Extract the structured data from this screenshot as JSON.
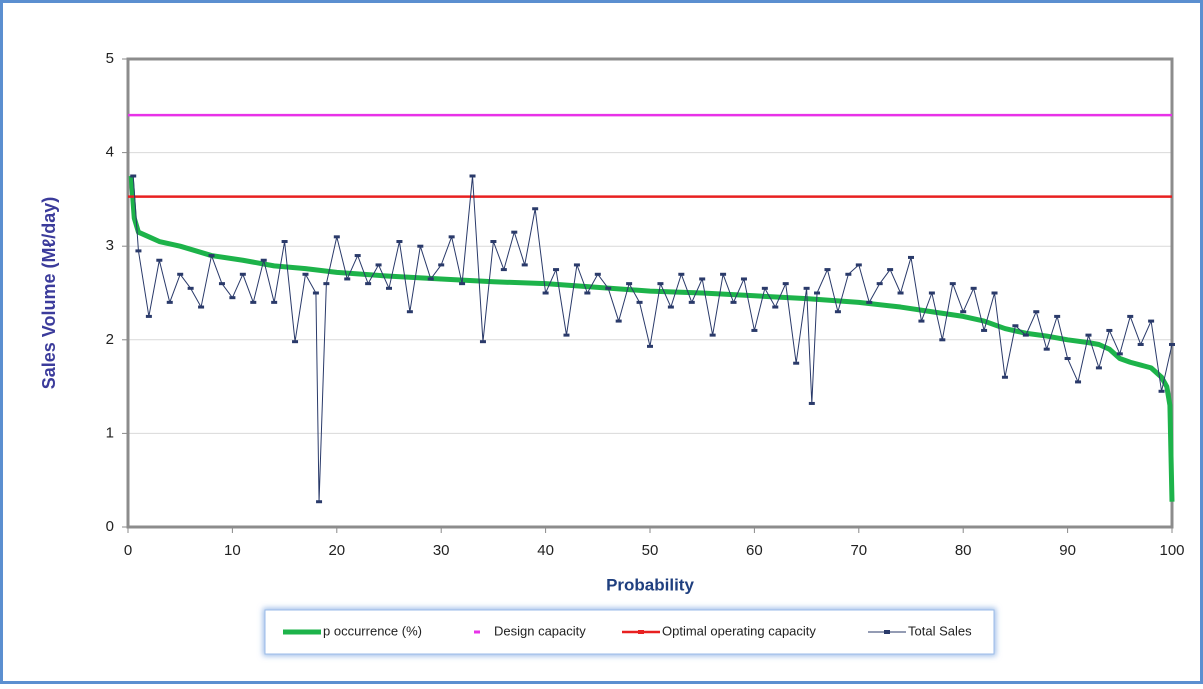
{
  "chart_data": {
    "type": "line",
    "xlabel": "Probability",
    "ylabel": "Sales Volume (Mℓ/day)",
    "xlim": [
      0,
      100
    ],
    "xticks": [
      0,
      10,
      20,
      30,
      40,
      50,
      60,
      70,
      80,
      90,
      100
    ],
    "ylim": [
      0,
      5
    ],
    "yticks": [
      0,
      1,
      2,
      3,
      4,
      5
    ],
    "grid": true,
    "legend": "bottom",
    "series": [
      {
        "name": "p occurrence (%)",
        "color": "#1db34a",
        "x": [
          0.3,
          0.6,
          1,
          2,
          3,
          5,
          8,
          11,
          14,
          17,
          20,
          25,
          30,
          35,
          40,
          45,
          50,
          55,
          60,
          65,
          70,
          74,
          77,
          80,
          82,
          84,
          86,
          88,
          90,
          92,
          93,
          94,
          95,
          96,
          97,
          98,
          99,
          99.5,
          99.8,
          100
        ],
        "values": [
          3.75,
          3.3,
          3.15,
          3.1,
          3.05,
          3.0,
          2.9,
          2.85,
          2.79,
          2.76,
          2.72,
          2.68,
          2.65,
          2.62,
          2.6,
          2.56,
          2.52,
          2.5,
          2.47,
          2.44,
          2.4,
          2.35,
          2.3,
          2.25,
          2.2,
          2.12,
          2.07,
          2.04,
          2.0,
          1.97,
          1.95,
          1.9,
          1.8,
          1.76,
          1.73,
          1.7,
          1.6,
          1.5,
          1.3,
          0.27
        ]
      },
      {
        "name": "Design capacity",
        "color": "#e832e8",
        "x": [
          0,
          100
        ],
        "values": [
          4.4,
          4.4
        ]
      },
      {
        "name": "Optimal operating capacity",
        "color": "#e82020",
        "x": [
          0,
          100
        ],
        "values": [
          3.53,
          3.53
        ]
      },
      {
        "name": "Total Sales",
        "color": "#2a3a6a",
        "x": [
          0.5,
          1,
          2,
          3,
          4,
          5,
          6,
          7,
          8,
          9,
          10,
          11,
          12,
          13,
          14,
          15,
          16,
          17,
          18,
          18.3,
          19,
          20,
          21,
          22,
          23,
          24,
          25,
          26,
          27,
          28,
          29,
          30,
          31,
          32,
          33,
          34,
          35,
          36,
          37,
          38,
          39,
          40,
          41,
          42,
          43,
          44,
          45,
          46,
          47,
          48,
          49,
          50,
          51,
          52,
          53,
          54,
          55,
          56,
          57,
          58,
          59,
          60,
          61,
          62,
          63,
          64,
          65,
          65.5,
          66,
          67,
          68,
          69,
          70,
          71,
          72,
          73,
          74,
          75,
          76,
          77,
          78,
          79,
          80,
          81,
          82,
          83,
          84,
          85,
          86,
          87,
          88,
          89,
          90,
          91,
          92,
          93,
          94,
          95,
          96,
          97,
          98,
          99,
          100
        ],
        "values": [
          3.75,
          2.95,
          2.25,
          2.85,
          2.4,
          2.7,
          2.55,
          2.35,
          2.9,
          2.6,
          2.45,
          2.7,
          2.4,
          2.85,
          2.4,
          3.05,
          1.98,
          2.7,
          2.5,
          0.27,
          2.6,
          3.1,
          2.65,
          2.9,
          2.6,
          2.8,
          2.55,
          3.05,
          2.3,
          3.0,
          2.65,
          2.8,
          3.1,
          2.6,
          3.75,
          1.98,
          3.05,
          2.75,
          3.15,
          2.8,
          3.4,
          2.5,
          2.75,
          2.05,
          2.8,
          2.5,
          2.7,
          2.55,
          2.2,
          2.6,
          2.4,
          1.93,
          2.6,
          2.35,
          2.7,
          2.4,
          2.65,
          2.05,
          2.7,
          2.4,
          2.65,
          2.1,
          2.55,
          2.35,
          2.6,
          1.75,
          2.55,
          1.32,
          2.5,
          2.75,
          2.3,
          2.7,
          2.8,
          2.4,
          2.6,
          2.75,
          2.5,
          2.88,
          2.2,
          2.5,
          2.0,
          2.6,
          2.3,
          2.55,
          2.1,
          2.5,
          1.6,
          2.15,
          2.05,
          2.3,
          1.9,
          2.25,
          1.8,
          1.55,
          2.05,
          1.7,
          2.1,
          1.85,
          2.25,
          1.95,
          2.2,
          1.45,
          1.95
        ]
      }
    ]
  }
}
